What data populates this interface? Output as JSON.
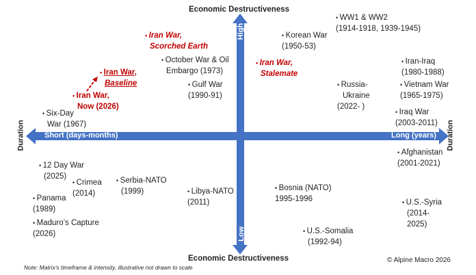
{
  "axes": {
    "vertical_title_top": "Economic Destructiveness",
    "vertical_title_bottom": "Economic Destructiveness",
    "high_label": "High",
    "low_label": "Low",
    "left_label": "Short (days-months)",
    "right_label": "Long (years)",
    "duration_left": "Duration",
    "duration_right": "Duration",
    "axis_color": "#4472C4"
  },
  "items": [
    {
      "l1": "Iran War,",
      "l2": "Scorched Earth",
      "highlight": true
    },
    {
      "l1": "October War & Oil",
      "l2": "Embargo (1973)"
    },
    {
      "l1": "Iran War,",
      "l2": "Baseline",
      "highlight": true
    },
    {
      "l1": "Gulf War",
      "l2": "(1990-91)"
    },
    {
      "l1": "Iran War,",
      "l2": "Now (2026)",
      "highlight": true
    },
    {
      "l1": "Six-Day",
      "l2": "War (1967)"
    },
    {
      "l1": "WW1 & WW2",
      "l2": "(1914-1918, 1939-1945)"
    },
    {
      "l1": "Korean War",
      "l2": "(1950-53)"
    },
    {
      "l1": "Iran War,",
      "l2": "Stalemate",
      "highlight": true
    },
    {
      "l1": "Iran-Iraq",
      "l2": "(1980-1988)"
    },
    {
      "l1": "Russia-",
      "l2": "Ukraine",
      "l3": "(2022- )"
    },
    {
      "l1": "Vietnam War",
      "l2": "(1965-1975)"
    },
    {
      "l1": "Iraq War",
      "l2": "(2003-2011)"
    },
    {
      "l1": "Afghanistan",
      "l2": "(2001-2021)"
    },
    {
      "l1": "12 Day War",
      "l2": "(2025)"
    },
    {
      "l1": "Crimea",
      "l2": "(2014)"
    },
    {
      "l1": "Serbia-NATO",
      "l2": "(1999)"
    },
    {
      "l1": "Panama",
      "l2": "(1989)"
    },
    {
      "l1": "Libya-NATO",
      "l2": "(2011)"
    },
    {
      "l1": "Bosnia (NATO)",
      "l2": "1995-1996"
    },
    {
      "l1": "U.S.-Syria",
      "l2": "(2014-",
      "l3": "2025)"
    },
    {
      "l1": "Maduro’s Capture",
      "l2": "(2026)"
    },
    {
      "l1": "U.S.-Somalia",
      "l2": "(1992-94)"
    }
  ],
  "highlight_color": "#C00000",
  "note": "Note: Matrix's timeframe & intensity, illustrative not drawn to scale",
  "copyright": "© Alpine Macro 2026"
}
